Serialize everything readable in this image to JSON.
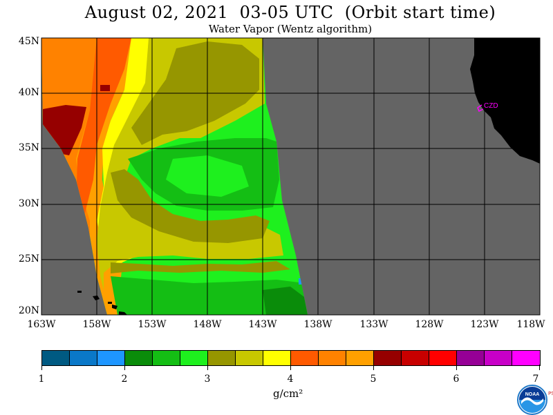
{
  "title": "August 02, 2021  03-05 UTC  (Orbit start time)",
  "subtitle": "Water Vapor (Wentz algorithm)",
  "lat_labels": [
    "45N",
    "40N",
    "35N",
    "30N",
    "25N",
    "20N"
  ],
  "lon_labels": [
    "163W",
    "158W",
    "153W",
    "148W",
    "143W",
    "138W",
    "133W",
    "128W",
    "123W",
    "118W"
  ],
  "station_label": "CZD",
  "colorbar": {
    "colors": [
      "#005a82",
      "#0a78c8",
      "#1e96ff",
      "#0a8c0a",
      "#14be14",
      "#1ef01e",
      "#969600",
      "#c8c800",
      "#ffff00",
      "#ff5a00",
      "#ff8200",
      "#ffa000",
      "#960000",
      "#c80000",
      "#ff0000",
      "#960096",
      "#c800c8",
      "#ff00ff"
    ],
    "tick_labels": [
      "1",
      "2",
      "3",
      "4",
      "5",
      "6",
      "7"
    ],
    "units": "g/cm²"
  },
  "logo": {
    "text": "NOAA",
    "side_text": "PSL"
  },
  "colors": {
    "no_data": "#646464",
    "land": "#000000",
    "grid": "#000000",
    "station": "#ff00ff"
  }
}
